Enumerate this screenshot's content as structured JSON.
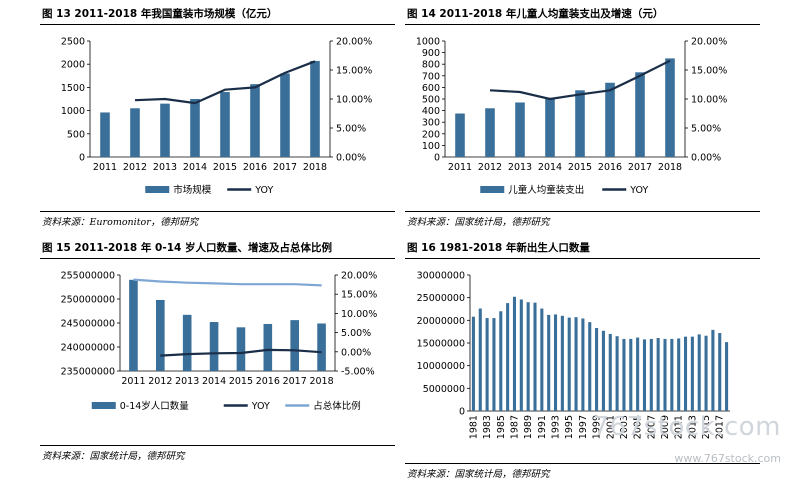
{
  "charts": [
    {
      "title": "图 13 2011-2018 年我国童装市场规模（亿元）",
      "source": "资料来源：Euromonitor，德邦研究",
      "chart_data": {
        "type": "bar",
        "categories": [
          "2011",
          "2012",
          "2013",
          "2014",
          "2015",
          "2016",
          "2017",
          "2018"
        ],
        "series": [
          {
            "name": "市场规模",
            "type": "bar",
            "axis": "left",
            "color": "#3a6f99",
            "values": [
              960,
              1050,
              1150,
              1250,
              1400,
              1570,
              1800,
              2070
            ]
          },
          {
            "name": "YOY",
            "type": "line",
            "axis": "right",
            "color": "#1a2e48",
            "values": [
              null,
              9.8,
              10.0,
              9.3,
              11.6,
              12.0,
              14.5,
              16.5
            ]
          }
        ],
        "yleft": {
          "ticks": [
            "0",
            "500",
            "1000",
            "1500",
            "2000",
            "2500"
          ],
          "lim": [
            0,
            2500
          ]
        },
        "yright": {
          "ticks": [
            "0.00%",
            "5.00%",
            "10.00%",
            "15.00%",
            "20.00%"
          ],
          "lim": [
            0,
            20
          ]
        },
        "legend": "bottom"
      }
    },
    {
      "title": "图 14 2011-2018 年儿童人均童装支出及增速（元）",
      "source": "资料来源：国家统计局，德邦研究",
      "chart_data": {
        "type": "bar",
        "categories": [
          "2011",
          "2012",
          "2013",
          "2014",
          "2015",
          "2016",
          "2017",
          "2018"
        ],
        "series": [
          {
            "name": "儿童人均童装支出",
            "type": "bar",
            "axis": "left",
            "color": "#3a6f99",
            "values": [
              375,
              420,
              470,
              510,
              575,
              640,
              730,
              850
            ]
          },
          {
            "name": "YOY",
            "type": "line",
            "axis": "right",
            "color": "#1a2e48",
            "values": [
              null,
              11.5,
              11.2,
              10.0,
              10.8,
              11.5,
              14.0,
              16.6
            ]
          }
        ],
        "yleft": {
          "ticks": [
            "0",
            "100",
            "200",
            "300",
            "400",
            "500",
            "600",
            "700",
            "800",
            "900",
            "1000"
          ],
          "lim": [
            0,
            1000
          ]
        },
        "yright": {
          "ticks": [
            "0.00%",
            "5.00%",
            "10.00%",
            "15.00%",
            "20.00%"
          ],
          "lim": [
            0,
            20
          ]
        },
        "legend": "bottom"
      }
    },
    {
      "title": "图 15 2011-2018 年 0-14 岁人口数量、增速及占总体比例",
      "source": "资料来源：国家统计局，德邦研究",
      "chart_data": {
        "type": "bar",
        "categories": [
          "2011",
          "2012",
          "2013",
          "2014",
          "2015",
          "2016",
          "2017",
          "2018"
        ],
        "series": [
          {
            "name": "0-14岁人口数量",
            "type": "bar",
            "axis": "left",
            "color": "#3a6f99",
            "values": [
              254000000,
              249800000,
              246700000,
              245200000,
              244100000,
              244800000,
              245600000,
              244900000
            ]
          },
          {
            "name": "YOY",
            "type": "line",
            "axis": "right",
            "color": "#1a2e48",
            "values": [
              null,
              -1.0,
              -0.6,
              -0.4,
              -0.3,
              0.5,
              0.4,
              -0.1
            ]
          },
          {
            "name": "占总体比例",
            "type": "line",
            "axis": "right",
            "color": "#7ea7d4",
            "values": [
              18.8,
              18.3,
              18.0,
              17.8,
              17.6,
              17.6,
              17.6,
              17.3
            ]
          }
        ],
        "yleft": {
          "ticks": [
            "235000000",
            "240000000",
            "245000000",
            "250000000",
            "255000000"
          ],
          "lim": [
            235000000,
            255000000
          ]
        },
        "yright": {
          "ticks": [
            "-5.00%",
            "0.00%",
            "5.00%",
            "10.00%",
            "15.00%",
            "20.00%"
          ],
          "lim": [
            -5,
            20
          ]
        },
        "legend": "bottom"
      }
    },
    {
      "title": "图 16 1981-2018 年新出生人口数量",
      "source": "资料来源：国家统计局，德邦研究",
      "chart_data": {
        "type": "bar",
        "categories": [
          "1981",
          "1982",
          "1983",
          "1984",
          "1985",
          "1986",
          "1987",
          "1988",
          "1989",
          "1990",
          "1991",
          "1992",
          "1993",
          "1994",
          "1995",
          "1996",
          "1997",
          "1998",
          "1999",
          "2000",
          "2001",
          "2002",
          "2003",
          "2004",
          "2005",
          "2006",
          "2007",
          "2008",
          "2009",
          "2010",
          "2011",
          "2012",
          "2013",
          "2014",
          "2015",
          "2016",
          "2017",
          "2018"
        ],
        "x_tick_labels": [
          "1981",
          "1983",
          "1985",
          "1987",
          "1989",
          "1991",
          "1993",
          "1995",
          "1997",
          "1999",
          "2001",
          "2003",
          "2005",
          "2007",
          "2009",
          "2011",
          "2013",
          "2015",
          "2017"
        ],
        "series": [
          {
            "name": "新出生人口数量",
            "type": "bar",
            "axis": "left",
            "color": "#3a6f99",
            "values": [
              20800000,
              22600000,
              20500000,
              20500000,
              22000000,
              23800000,
              25200000,
              24600000,
              24000000,
              23900000,
              22600000,
              21200000,
              21300000,
              21000000,
              20600000,
              20700000,
              20400000,
              19600000,
              18300000,
              17700000,
              17000000,
              16500000,
              15900000,
              15900000,
              16200000,
              15800000,
              15900000,
              16100000,
              15900000,
              15900000,
              16000000,
              16400000,
              16400000,
              16900000,
              16600000,
              17900000,
              17200000,
              15200000
            ]
          }
        ],
        "yleft": {
          "ticks": [
            "0",
            "5000000",
            "10000000",
            "15000000",
            "20000000",
            "25000000",
            "30000000"
          ],
          "lim": [
            0,
            30000000
          ]
        }
      }
    }
  ],
  "watermark": "767stock.com",
  "watermark_url": "www.767stock.com"
}
